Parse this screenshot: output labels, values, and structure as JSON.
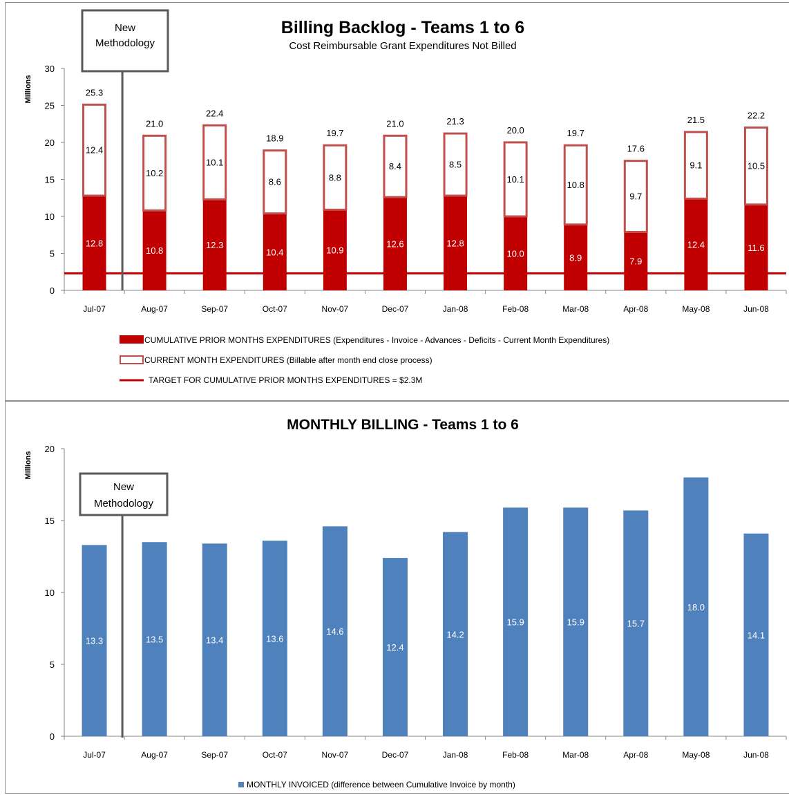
{
  "chart_data": [
    {
      "type": "bar",
      "stacked": true,
      "title": "Billing Backlog - Teams 1 to 6",
      "subtitle": "Cost Reimbursable Grant Expenditures Not Billed",
      "ylabel": "Millions",
      "xlabel": "",
      "ylim": [
        0,
        30
      ],
      "yticks": [
        0,
        5,
        10,
        15,
        20,
        25,
        30
      ],
      "grid": false,
      "categories": [
        "Jul-07",
        "Aug-07",
        "Sep-07",
        "Oct-07",
        "Nov-07",
        "Dec-07",
        "Jan-08",
        "Feb-08",
        "Mar-08",
        "Apr-08",
        "May-08",
        "Jun-08"
      ],
      "series": [
        {
          "name": "CUMULATIVE PRIOR MONTHS EXPENDITURES",
          "color": "#c00000",
          "values": [
            12.8,
            10.8,
            12.3,
            10.4,
            10.9,
            12.6,
            12.8,
            10.0,
            8.9,
            7.9,
            12.4,
            11.6
          ]
        },
        {
          "name": "CURRENT MONTH EXPENDITURES",
          "color": "#c0504d",
          "values": [
            12.4,
            10.2,
            10.1,
            8.6,
            8.8,
            8.4,
            8.5,
            10.1,
            10.8,
            9.7,
            9.1,
            10.5
          ]
        }
      ],
      "totals": [
        "25.3",
        "21.0",
        "22.4",
        "18.9",
        "19.7",
        "21.0",
        "21.3",
        "20.0",
        "19.7",
        "17.6",
        "21.5",
        "22.2"
      ],
      "target": {
        "value": 2.3,
        "color": "#c00000"
      },
      "annotation": {
        "line1": "New",
        "line2": "Methodology"
      },
      "legend": {
        "placement": "bottom",
        "entries": [
          {
            "label": "CUMULATIVE  PRIOR MONTHS EXPENDITURES  (Expenditures - Invoice - Advances - Deficits - Current Month Expenditures)"
          },
          {
            "label": "CURRENT MONTH EXPENDITURES  (Billable after month end close process)"
          },
          {
            "label": "TARGET FOR CUMULATIVE  PRIOR MONTHS EXPENDITURES  = $2.3M"
          }
        ]
      }
    },
    {
      "type": "bar",
      "title": "MONTHLY BILLING - Teams 1 to 6",
      "ylabel": "Millions",
      "xlabel": "",
      "ylim": [
        0,
        20
      ],
      "yticks": [
        0,
        5,
        10,
        15,
        20
      ],
      "grid": false,
      "categories": [
        "Jul-07",
        "Aug-07",
        "Sep-07",
        "Oct-07",
        "Nov-07",
        "Dec-07",
        "Jan-08",
        "Feb-08",
        "Mar-08",
        "Apr-08",
        "May-08",
        "Jun-08"
      ],
      "series": [
        {
          "name": "MONTHLY INVOICED",
          "color": "#4f81bd",
          "values": [
            13.3,
            13.5,
            13.4,
            13.6,
            14.6,
            12.4,
            14.2,
            15.9,
            15.9,
            15.7,
            18.0,
            14.1
          ]
        }
      ],
      "annotation": {
        "line1": "New",
        "line2": "Methodology"
      },
      "legend": {
        "placement": "bottom",
        "entries": [
          {
            "label": "MONTHLY INVOICED  (difference between Cumulative Invoice by month)"
          }
        ]
      }
    }
  ]
}
